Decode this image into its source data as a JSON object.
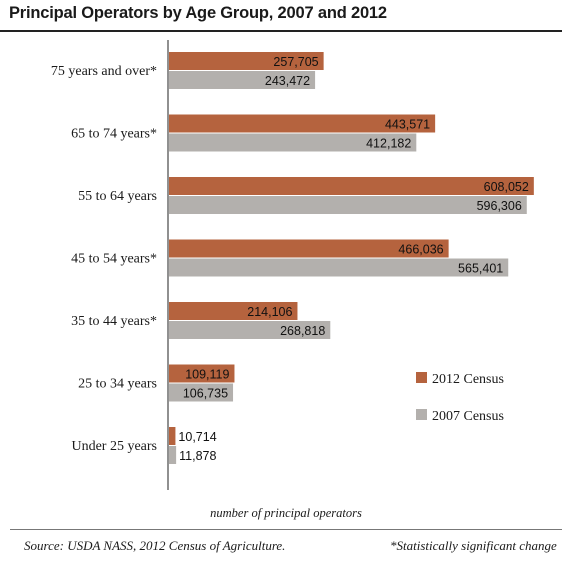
{
  "chart_data": {
    "type": "bar",
    "orientation": "horizontal",
    "title": "Principal Operators by Age Group, 2007 and 2012",
    "xlabel": "number of principal operators",
    "ylabel": "",
    "categories": [
      "75 years and over*",
      "65 to 74 years*",
      "55 to 64 years",
      "45 to 54 years*",
      "35 to 44 years*",
      "25 to 34 years",
      "Under 25 years"
    ],
    "series": [
      {
        "name": "2012 Census",
        "color": "#b5633e",
        "values": [
          257705,
          443571,
          608052,
          466036,
          214106,
          109119,
          10714
        ],
        "labels": [
          "257,705",
          "443,571",
          "608,052",
          "466,036",
          "214,106",
          "109,119",
          "10,714"
        ]
      },
      {
        "name": "2007 Census",
        "color": "#b3b0ad",
        "values": [
          243472,
          412182,
          596306,
          565401,
          268818,
          106735,
          11878
        ],
        "labels": [
          "243,472",
          "412,182",
          "596,306",
          "565,401",
          "268,818",
          "106,735",
          "11,878"
        ]
      }
    ],
    "xlim": [
      0,
      620000
    ],
    "grid": false,
    "legend_position": "right"
  },
  "source": "Source: USDA NASS, 2012 Census of Agriculture.",
  "note": "*Statistically significant change"
}
